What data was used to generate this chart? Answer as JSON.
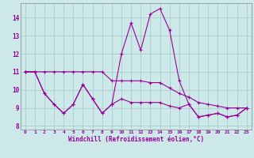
{
  "xlabel": "Windchill (Refroidissement éolien,°C)",
  "bg_color": "#cce8e8",
  "grid_color": "#aacccc",
  "line_color": "#990099",
  "xmin": 0,
  "xmax": 23,
  "ymin": 7.8,
  "ymax": 14.8,
  "yticks": [
    8,
    9,
    10,
    11,
    12,
    13,
    14
  ],
  "xticks": [
    0,
    1,
    2,
    3,
    4,
    5,
    6,
    7,
    8,
    9,
    10,
    11,
    12,
    13,
    14,
    15,
    16,
    17,
    18,
    19,
    20,
    21,
    22,
    23
  ],
  "line1_y": [
    11.0,
    11.0,
    11.0,
    11.0,
    11.0,
    11.0,
    11.0,
    11.0,
    11.0,
    10.5,
    10.5,
    10.5,
    10.5,
    10.4,
    10.4,
    10.1,
    9.8,
    9.6,
    9.3,
    9.2,
    9.1,
    9.0,
    9.0,
    9.0
  ],
  "line2_y": [
    11.0,
    11.0,
    9.8,
    9.2,
    8.7,
    9.2,
    10.3,
    9.5,
    8.7,
    9.2,
    9.5,
    9.3,
    9.3,
    9.3,
    9.3,
    9.1,
    9.0,
    9.2,
    8.5,
    8.6,
    8.7,
    8.5,
    8.6,
    9.0
  ],
  "line3_y": [
    11.0,
    11.0,
    9.8,
    9.2,
    8.7,
    9.2,
    10.3,
    9.5,
    8.7,
    9.2,
    12.0,
    13.7,
    12.2,
    14.2,
    14.5,
    13.3,
    10.5,
    9.2,
    8.5,
    8.6,
    8.7,
    8.5,
    8.6,
    9.0
  ]
}
